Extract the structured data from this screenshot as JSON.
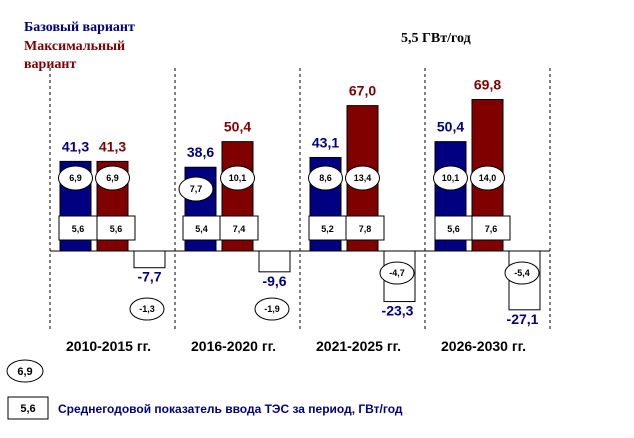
{
  "chart_data": {
    "type": "bar",
    "legend": [
      "Базовый вариант",
      "Максимальный",
      "вариант"
    ],
    "unit_label": "5,5 ГВт/год",
    "categories": [
      "2010-2015 гг.",
      "2016-2020 гг.",
      "2021-2025 гг.",
      "2026-2030 гг."
    ],
    "series": [
      {
        "name": "Базовый вариант",
        "color": "#000080",
        "values": [
          41.3,
          38.6,
          43.1,
          50.4
        ],
        "value_labels": [
          "41,3",
          "38,6",
          "43,1",
          "50,4"
        ],
        "ellipse_labels": [
          "6,9",
          "7,7",
          "8,6",
          "10,1"
        ],
        "box_labels": [
          "5,6",
          "5,4",
          "5,2",
          "5,6"
        ]
      },
      {
        "name": "Максимальный вариант",
        "color": "#800000",
        "values": [
          41.3,
          50.4,
          67.0,
          69.8
        ],
        "value_labels": [
          "41,3",
          "50,4",
          "67,0",
          "69,8"
        ],
        "ellipse_labels": [
          "6,9",
          "10,1",
          "13,4",
          "14,0"
        ],
        "box_labels": [
          "5,6",
          "7,4",
          "7,8",
          "7,6"
        ]
      },
      {
        "name": "negative",
        "color": "#ffffff",
        "values": [
          -7.7,
          -9.6,
          -23.3,
          -27.1
        ],
        "value_labels": [
          "-7,7",
          "-9,6",
          "-23,3",
          "-27,1"
        ],
        "ellipse_labels": [
          "-1,3",
          "-1,9",
          "-4,7",
          "-5,4"
        ]
      }
    ],
    "footer_legend": {
      "ellipse_sample": "6,9",
      "box_sample": "5,6",
      "box_text": "Среднегодовой показатель ввода ТЭС за период, ГВт/год"
    }
  }
}
